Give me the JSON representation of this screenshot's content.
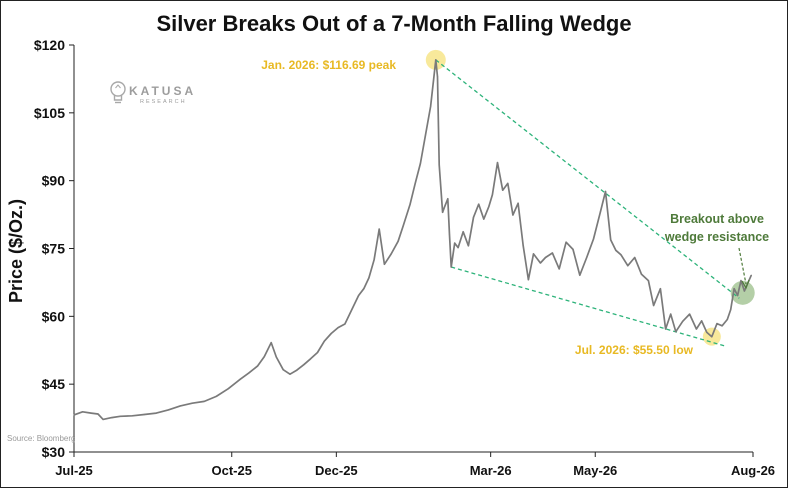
{
  "chart_data": {
    "type": "line",
    "title": "Silver Breaks Out of a 7-Month Falling Wedge",
    "ylabel": "Price ($/Oz.)",
    "xlabel": "",
    "ylim": [
      30,
      120
    ],
    "yticks": [
      {
        "value": 30,
        "label": "$30"
      },
      {
        "value": 45,
        "label": "$45"
      },
      {
        "value": 60,
        "label": "$60"
      },
      {
        "value": 75,
        "label": "$75"
      },
      {
        "value": 90,
        "label": "$90"
      },
      {
        "value": 105,
        "label": "$105"
      },
      {
        "value": 120,
        "label": "$120"
      }
    ],
    "xlim": [
      "2025-07-01",
      "2026-08-01"
    ],
    "xticks": [
      {
        "date": "2025-07-01",
        "label": "Jul-25"
      },
      {
        "date": "2025-10-01",
        "label": "Oct-25"
      },
      {
        "date": "2025-12-01",
        "label": "Dec-25"
      },
      {
        "date": "2026-03-01",
        "label": "Mar-26"
      },
      {
        "date": "2026-05-01",
        "label": "May-26"
      },
      {
        "date": "2026-08-01",
        "label": "Aug-26"
      }
    ],
    "grid": {
      "horizontal": false,
      "vertical": false
    },
    "series": [
      {
        "color": "#7a7a7a",
        "points": [
          [
            "2025-07-01",
            38.2
          ],
          [
            "2025-07-06",
            38.9
          ],
          [
            "2025-07-11",
            38.6
          ],
          [
            "2025-07-15",
            38.4
          ],
          [
            "2025-07-18",
            37.2
          ],
          [
            "2025-07-23",
            37.6
          ],
          [
            "2025-07-28",
            37.9
          ],
          [
            "2025-08-04",
            38.0
          ],
          [
            "2025-08-11",
            38.3
          ],
          [
            "2025-08-18",
            38.6
          ],
          [
            "2025-08-25",
            39.3
          ],
          [
            "2025-09-01",
            40.2
          ],
          [
            "2025-09-08",
            40.8
          ],
          [
            "2025-09-15",
            41.2
          ],
          [
            "2025-09-22",
            42.3
          ],
          [
            "2025-09-29",
            44.0
          ],
          [
            "2025-10-06",
            46.1
          ],
          [
            "2025-10-11",
            47.5
          ],
          [
            "2025-10-16",
            49.0
          ],
          [
            "2025-10-20",
            51.1
          ],
          [
            "2025-10-24",
            54.2
          ],
          [
            "2025-10-27",
            51.0
          ],
          [
            "2025-10-31",
            48.2
          ],
          [
            "2025-11-04",
            47.2
          ],
          [
            "2025-11-08",
            48.1
          ],
          [
            "2025-11-12",
            49.3
          ],
          [
            "2025-11-16",
            50.6
          ],
          [
            "2025-11-20",
            52.0
          ],
          [
            "2025-11-24",
            54.5
          ],
          [
            "2025-11-28",
            56.2
          ],
          [
            "2025-12-02",
            57.5
          ],
          [
            "2025-12-06",
            58.3
          ],
          [
            "2025-12-10",
            61.5
          ],
          [
            "2025-12-14",
            64.6
          ],
          [
            "2025-12-17",
            66.1
          ],
          [
            "2025-12-20",
            68.5
          ],
          [
            "2025-12-23",
            72.5
          ],
          [
            "2025-12-26",
            79.3
          ],
          [
            "2025-12-29",
            71.5
          ],
          [
            "2026-01-02",
            73.8
          ],
          [
            "2026-01-06",
            76.6
          ],
          [
            "2026-01-09",
            80.0
          ],
          [
            "2026-01-13",
            84.8
          ],
          [
            "2026-01-16",
            89.4
          ],
          [
            "2026-01-19",
            93.8
          ],
          [
            "2026-01-22",
            100.1
          ],
          [
            "2026-01-25",
            106.4
          ],
          [
            "2026-01-28",
            116.7
          ],
          [
            "2026-01-29",
            113.0
          ],
          [
            "2026-01-30",
            93.5
          ],
          [
            "2026-02-01",
            83.0
          ],
          [
            "2026-02-02",
            84.1
          ],
          [
            "2026-02-04",
            86.0
          ],
          [
            "2026-02-05",
            78.0
          ],
          [
            "2026-02-06",
            70.9
          ],
          [
            "2026-02-08",
            76.2
          ],
          [
            "2026-02-10",
            75.2
          ],
          [
            "2026-02-13",
            78.7
          ],
          [
            "2026-02-16",
            75.6
          ],
          [
            "2026-02-19",
            81.9
          ],
          [
            "2026-02-22",
            84.8
          ],
          [
            "2026-02-25",
            81.5
          ],
          [
            "2026-02-28",
            84.3
          ],
          [
            "2026-03-02",
            86.9
          ],
          [
            "2026-03-05",
            94.0
          ],
          [
            "2026-03-08",
            87.9
          ],
          [
            "2026-03-11",
            89.4
          ],
          [
            "2026-03-14",
            82.4
          ],
          [
            "2026-03-17",
            85.0
          ],
          [
            "2026-03-20",
            75.6
          ],
          [
            "2026-03-23",
            68.1
          ],
          [
            "2026-03-26",
            73.8
          ],
          [
            "2026-03-30",
            71.8
          ],
          [
            "2026-04-02",
            73.0
          ],
          [
            "2026-04-06",
            74.0
          ],
          [
            "2026-04-10",
            70.5
          ],
          [
            "2026-04-14",
            76.4
          ],
          [
            "2026-04-18",
            74.8
          ],
          [
            "2026-04-22",
            69.1
          ],
          [
            "2026-04-26",
            73.0
          ],
          [
            "2026-04-30",
            77.1
          ],
          [
            "2026-05-04",
            83.1
          ],
          [
            "2026-05-07",
            87.6
          ],
          [
            "2026-05-10",
            76.9
          ],
          [
            "2026-05-13",
            74.6
          ],
          [
            "2026-05-16",
            73.6
          ],
          [
            "2026-05-20",
            71.2
          ],
          [
            "2026-05-24",
            73.0
          ],
          [
            "2026-05-28",
            69.3
          ],
          [
            "2026-06-01",
            67.9
          ],
          [
            "2026-06-04",
            62.4
          ],
          [
            "2026-06-08",
            66.1
          ],
          [
            "2026-06-11",
            57.2
          ],
          [
            "2026-06-14",
            60.5
          ],
          [
            "2026-06-17",
            56.6
          ],
          [
            "2026-06-21",
            58.9
          ],
          [
            "2026-06-25",
            60.5
          ],
          [
            "2026-06-29",
            57.2
          ],
          [
            "2026-07-02",
            59.0
          ],
          [
            "2026-07-05",
            56.5
          ],
          [
            "2026-07-08",
            55.5
          ],
          [
            "2026-07-11",
            58.4
          ],
          [
            "2026-07-14",
            57.9
          ],
          [
            "2026-07-17",
            59.3
          ],
          [
            "2026-07-19",
            61.5
          ],
          [
            "2026-07-21",
            66.1
          ],
          [
            "2026-07-23",
            64.6
          ],
          [
            "2026-07-25",
            67.9
          ],
          [
            "2026-07-27",
            65.6
          ],
          [
            "2026-07-29",
            67.4
          ],
          [
            "2026-07-31",
            69.1
          ]
        ]
      }
    ],
    "wedge_lines": [
      {
        "name": "resistance",
        "color": "#2db37a",
        "from": [
          "2026-01-28",
          116.7
        ],
        "to": [
          "2026-07-24",
          64.0
        ]
      },
      {
        "name": "support",
        "color": "#2db37a",
        "from": [
          "2026-02-06",
          70.9
        ],
        "to": [
          "2026-07-16",
          53.4
        ]
      }
    ],
    "highlights": [
      {
        "date": "2026-01-28",
        "value": 116.7,
        "color": "#f5e27a"
      },
      {
        "date": "2026-07-08",
        "value": 55.5,
        "color": "#f5e27a"
      },
      {
        "date": "2026-07-26",
        "value": 65.2,
        "color": "#9bbf8a"
      }
    ],
    "annotations": {
      "peak": "Jan. 2026: $116.69 peak",
      "low": "Jul. 2026: $55.50 low",
      "breakout_line1": "Breakout above",
      "breakout_line2": "wedge resistance"
    }
  },
  "logo": {
    "name": "KATUSA",
    "subtitle": "RESEARCH",
    "color": "#9d9d9d"
  },
  "source": "Source: Bloomberg"
}
